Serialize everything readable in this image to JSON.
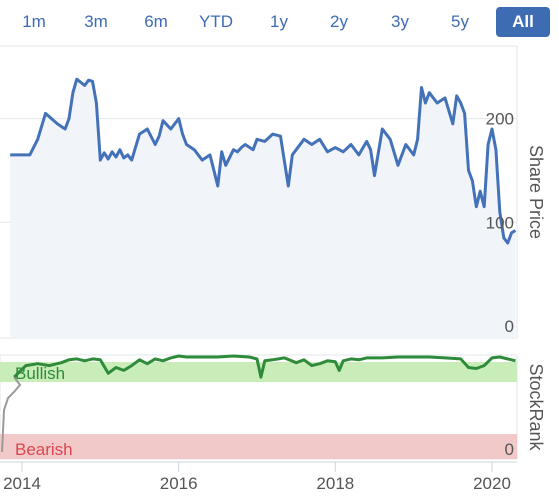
{
  "range_selector": {
    "buttons": [
      "1m",
      "3m",
      "6m",
      "YTD",
      "1y",
      "2y",
      "3y",
      "5y",
      "All"
    ],
    "active": "All"
  },
  "colors": {
    "price_line": "#4472b8",
    "price_fill": "#f1f4f9",
    "stockrank_line": "#2e8b3a",
    "bullish_band": "#c9edb8",
    "bearish_band": "#f2c9c9",
    "early_line": "#9a9a9a",
    "active_button": "#3d6cb3"
  },
  "chart_data": [
    {
      "type": "line",
      "name": "price-chart",
      "ylabel": "Share Price",
      "ylim": [
        0,
        270
      ],
      "yticks": [
        "0",
        "100",
        "200"
      ],
      "grid": true,
      "series": [
        {
          "name": "Share Price",
          "x": [
            2013.85,
            2014.1,
            2014.2,
            2014.3,
            2014.45,
            2014.55,
            2014.6,
            2014.65,
            2014.7,
            2014.8,
            2014.85,
            2014.9,
            2014.95,
            2015.0,
            2015.05,
            2015.1,
            2015.15,
            2015.2,
            2015.25,
            2015.3,
            2015.35,
            2015.4,
            2015.5,
            2015.6,
            2015.7,
            2015.75,
            2015.8,
            2015.9,
            2016.0,
            2016.05,
            2016.1,
            2016.2,
            2016.3,
            2016.4,
            2016.5,
            2016.55,
            2016.6,
            2016.7,
            2016.75,
            2016.8,
            2016.85,
            2016.95,
            2017.0,
            2017.1,
            2017.2,
            2017.3,
            2017.4,
            2017.45,
            2017.5,
            2017.6,
            2017.7,
            2017.8,
            2017.9,
            2018.0,
            2018.1,
            2018.2,
            2018.3,
            2018.4,
            2018.45,
            2018.5,
            2018.6,
            2018.7,
            2018.8,
            2018.9,
            2019.0,
            2019.05,
            2019.1,
            2019.15,
            2019.2,
            2019.3,
            2019.4,
            2019.5,
            2019.55,
            2019.6,
            2019.65,
            2019.7,
            2019.75,
            2019.8,
            2019.85,
            2019.9,
            2019.95,
            2020.0,
            2020.05,
            2020.1,
            2020.15,
            2020.2,
            2020.25,
            2020.3
          ],
          "values": [
            165,
            165,
            180,
            205,
            195,
            190,
            200,
            225,
            238,
            232,
            237,
            236,
            215,
            160,
            167,
            161,
            168,
            163,
            170,
            162,
            165,
            160,
            185,
            190,
            175,
            183,
            198,
            190,
            200,
            185,
            175,
            170,
            160,
            165,
            135,
            168,
            155,
            170,
            168,
            172,
            175,
            170,
            180,
            178,
            185,
            183,
            135,
            165,
            170,
            180,
            175,
            180,
            168,
            172,
            168,
            175,
            165,
            178,
            170,
            145,
            190,
            180,
            155,
            175,
            165,
            180,
            230,
            215,
            225,
            215,
            220,
            195,
            222,
            215,
            205,
            150,
            140,
            115,
            130,
            115,
            175,
            190,
            170,
            110,
            85,
            80,
            90,
            92
          ]
        }
      ]
    },
    {
      "type": "line",
      "name": "stockrank-chart",
      "ylabel": "StockRank",
      "ylim": [
        0,
        100
      ],
      "yticks": [
        "0"
      ],
      "bands": [
        "Bullish",
        "Bearish"
      ],
      "xticks": [
        "2014",
        "2016",
        "2018",
        "2020"
      ],
      "series": [
        {
          "name": "StockRank",
          "x": [
            2013.78,
            2013.9,
            2014.05,
            2014.2,
            2014.35,
            2014.5,
            2014.6,
            2014.7,
            2014.8,
            2014.9,
            2015.0,
            2015.1,
            2015.2,
            2015.3,
            2015.4,
            2015.5,
            2015.6,
            2015.7,
            2015.8,
            2015.9,
            2016.0,
            2016.1,
            2016.3,
            2016.5,
            2016.7,
            2016.9,
            2017.0,
            2017.05,
            2017.1,
            2017.2,
            2017.35,
            2017.5,
            2017.6,
            2017.7,
            2017.8,
            2017.9,
            2018.0,
            2018.05,
            2018.1,
            2018.2,
            2018.3,
            2018.4,
            2018.6,
            2018.8,
            2019.0,
            2019.2,
            2019.4,
            2019.6,
            2019.7,
            2019.8,
            2019.9,
            2020.0,
            2020.1,
            2020.2,
            2020.3
          ],
          "values": [
            60,
            78,
            90,
            92,
            90,
            93,
            96,
            97,
            95,
            97,
            96,
            82,
            88,
            85,
            90,
            96,
            92,
            97,
            95,
            98,
            100,
            99,
            99,
            99,
            100,
            99,
            97,
            78,
            95,
            96,
            98,
            93,
            96,
            90,
            92,
            95,
            94,
            85,
            95,
            97,
            96,
            98,
            98,
            99,
            99,
            99,
            98,
            97,
            88,
            87,
            90,
            98,
            99,
            97,
            95
          ]
        }
      ]
    }
  ]
}
